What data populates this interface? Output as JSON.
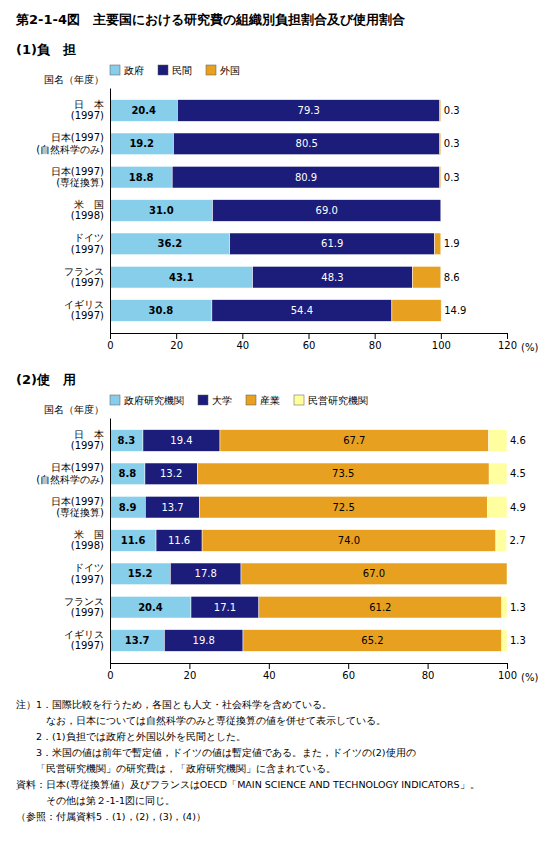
{
  "title": "第2-1-4図　主要国における研究費の組織別負担割合及び使用割合",
  "annotations": [
    "注）1．国際比較を行うため，各国とも人文・社会科学を含めている。",
    "　　　なお，日本については自然科学のみと専従換算の値を併せて表示している。",
    "　　2．(1)負担では政府と外国以外を民間とした。",
    "　　3．米国の値は前年で暫定値，ドイツの値は暫定値である。また，ドイツの(2)使用の",
    "　　「民営研究機関」の研究費は，「政府研究機関」に含まれている。",
    "資料：日本(専従換算値）及びフランスはOECD「MAIN SCIENCE AND TECHNOLOGY INDICATORS」。",
    "　　　その他は第２-1-1図に同じ。",
    "（参照：付属資料5．(1)，(2)，(3)，(4)）"
  ],
  "chart_data": [
    {
      "type": "bar",
      "orientation": "horizontal",
      "stacked": true,
      "data_labels": true,
      "grid": false,
      "title": "(1)負　担",
      "ylabel": "国名（年度）",
      "xlabel": "(%)",
      "categories": [
        "日　本\n(1997)",
        "日本(1997)\n(自然科学のみ)",
        "日本(1997)\n(専従換算)",
        "米　国\n(1998)",
        "ドイツ\n(1997)",
        "フランス\n(1997)",
        "イギリス\n(1997)"
      ],
      "series": [
        {
          "name": "政府",
          "color": "#87CEEB",
          "values": [
            20.4,
            19.2,
            18.8,
            31.0,
            36.2,
            43.1,
            30.8
          ],
          "value_labels": [
            "20.4",
            "19.2",
            "18.8",
            "31.0",
            "36.2",
            "43.1",
            "30.8"
          ]
        },
        {
          "name": "民間",
          "color": "#1C1C7A",
          "values": [
            79.3,
            80.5,
            80.9,
            69.0,
            61.9,
            48.3,
            54.4
          ],
          "value_labels": [
            "79.3",
            "80.5",
            "80.9",
            "69.0",
            "61.9",
            "48.3",
            "54.4"
          ]
        },
        {
          "name": "外国",
          "color": "#E8A020",
          "values": [
            0.3,
            0.3,
            0.3,
            0.0,
            1.9,
            8.6,
            14.9
          ],
          "value_labels": [
            "0.3",
            "0.3",
            "0.3",
            null,
            "1.9",
            "8.6",
            "14.9"
          ]
        }
      ],
      "xlim": [
        0,
        120
      ],
      "xticks": [
        0,
        20,
        40,
        60,
        80,
        100,
        120
      ]
    },
    {
      "type": "bar",
      "orientation": "horizontal",
      "stacked": true,
      "data_labels": true,
      "grid": false,
      "title": "(2)使　用",
      "ylabel": "国名（年度）",
      "xlabel": "(%)",
      "categories": [
        "日　本\n(1997)",
        "日本(1997)\n(自然科学のみ)",
        "日本(1997)\n(専従換算)",
        "米　国\n(1998)",
        "ドイツ\n(1997)",
        "フランス\n(1997)",
        "イギリス\n(1997)"
      ],
      "series": [
        {
          "name": "政府研究機関",
          "color": "#87CEEB",
          "values": [
            8.3,
            8.8,
            8.9,
            11.6,
            15.2,
            20.4,
            13.7
          ],
          "value_labels": [
            "8.3",
            "8.8",
            "8.9",
            "11.6",
            "15.2",
            "20.4",
            "13.7"
          ]
        },
        {
          "name": "大学",
          "color": "#1C1C7A",
          "values": [
            19.4,
            13.2,
            13.7,
            11.6,
            17.8,
            17.1,
            19.8
          ],
          "value_labels": [
            "19.4",
            "13.2",
            "13.7",
            "11.6",
            "17.8",
            "17.1",
            "19.8"
          ]
        },
        {
          "name": "産業",
          "color": "#E8A020",
          "values": [
            67.7,
            73.5,
            72.5,
            74.0,
            67.0,
            61.2,
            65.2
          ],
          "value_labels": [
            "67.7",
            "73.5",
            "72.5",
            "74.0",
            "67.0",
            "61.2",
            "65.2"
          ]
        },
        {
          "name": "民営研究機関",
          "color": "#FFFFA0",
          "values": [
            4.6,
            4.5,
            4.9,
            2.7,
            0.0,
            1.3,
            1.3
          ],
          "value_labels": [
            "4.6",
            "4.5",
            "4.9",
            "2.7",
            null,
            "1.3",
            "1.3"
          ]
        }
      ],
      "xlim": [
        0,
        100
      ],
      "xticks": [
        0,
        20,
        40,
        60,
        80,
        100
      ]
    }
  ]
}
